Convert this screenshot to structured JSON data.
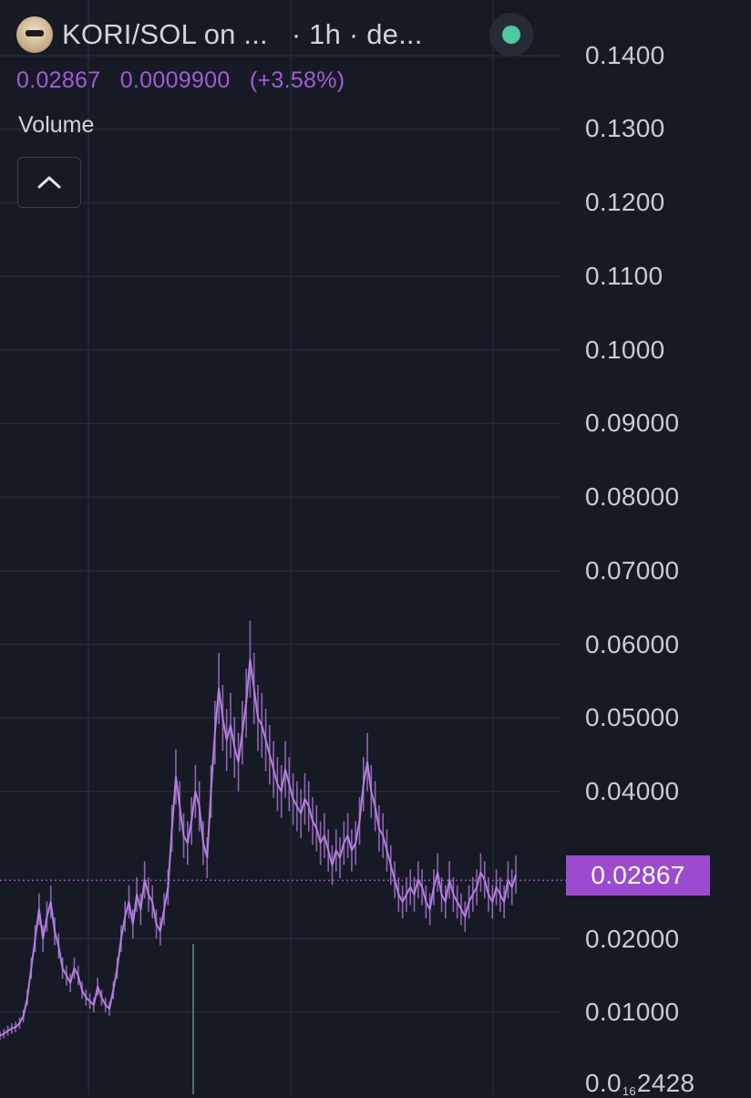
{
  "header": {
    "pair_title": "KORI/SOL on ...",
    "interval_text": "· 1h · de...",
    "status_color": "#4ec9a0"
  },
  "price_info": {
    "last": "0.02867",
    "change": "0.0009900",
    "change_pct": "(+3.58%)"
  },
  "volume": {
    "label": "Volume",
    "toggle_icon": "chevron-up-icon"
  },
  "y_axis": {
    "ticks": [
      {
        "label": "0.1400",
        "value": 0.14
      },
      {
        "label": "0.1300",
        "value": 0.13
      },
      {
        "label": "0.1200",
        "value": 0.12
      },
      {
        "label": "0.1100",
        "value": 0.11
      },
      {
        "label": "0.1000",
        "value": 0.1
      },
      {
        "label": "0.09000",
        "value": 0.09
      },
      {
        "label": "0.08000",
        "value": 0.08
      },
      {
        "label": "0.07000",
        "value": 0.07
      },
      {
        "label": "0.06000",
        "value": 0.06
      },
      {
        "label": "0.05000",
        "value": 0.05
      },
      {
        "label": "0.04000",
        "value": 0.04
      },
      {
        "label": "0.02000",
        "value": 0.02
      },
      {
        "label": "0.01000",
        "value": 0.01
      }
    ],
    "bottom_tick": {
      "prefix": "0.0",
      "sub": "16",
      "suffix": "2428"
    }
  },
  "current_price": {
    "label": "0.02867",
    "value": 0.02867,
    "color": "#9c4bd0"
  },
  "chart_data": {
    "type": "line",
    "series_color": "#b57ee0",
    "ylim": [
      0,
      0.14
    ],
    "grid": true,
    "xlabel": "",
    "ylabel": "",
    "y": [
      0.0068,
      0.0071,
      0.0075,
      0.0078,
      0.008,
      0.0085,
      0.0095,
      0.012,
      0.016,
      0.02,
      0.024,
      0.02,
      0.023,
      0.025,
      0.021,
      0.019,
      0.016,
      0.015,
      0.014,
      0.016,
      0.015,
      0.013,
      0.012,
      0.0115,
      0.011,
      0.0135,
      0.012,
      0.011,
      0.0105,
      0.013,
      0.016,
      0.02,
      0.023,
      0.025,
      0.022,
      0.026,
      0.024,
      0.028,
      0.026,
      0.025,
      0.022,
      0.021,
      0.024,
      0.027,
      0.035,
      0.042,
      0.038,
      0.034,
      0.033,
      0.036,
      0.04,
      0.038,
      0.033,
      0.031,
      0.04,
      0.048,
      0.054,
      0.05,
      0.047,
      0.049,
      0.046,
      0.044,
      0.048,
      0.052,
      0.058,
      0.054,
      0.05,
      0.049,
      0.047,
      0.045,
      0.043,
      0.041,
      0.04,
      0.043,
      0.041,
      0.039,
      0.038,
      0.037,
      0.039,
      0.038,
      0.036,
      0.035,
      0.033,
      0.034,
      0.032,
      0.03,
      0.032,
      0.031,
      0.033,
      0.034,
      0.032,
      0.033,
      0.036,
      0.041,
      0.044,
      0.04,
      0.038,
      0.035,
      0.034,
      0.032,
      0.03,
      0.028,
      0.026,
      0.025,
      0.026,
      0.027,
      0.026,
      0.028,
      0.027,
      0.025,
      0.024,
      0.027,
      0.029,
      0.026,
      0.025,
      0.028,
      0.026,
      0.025,
      0.024,
      0.023,
      0.025,
      0.026,
      0.027,
      0.029,
      0.028,
      0.026,
      0.025,
      0.027,
      0.026,
      0.025,
      0.028,
      0.027,
      0.0287
    ]
  }
}
